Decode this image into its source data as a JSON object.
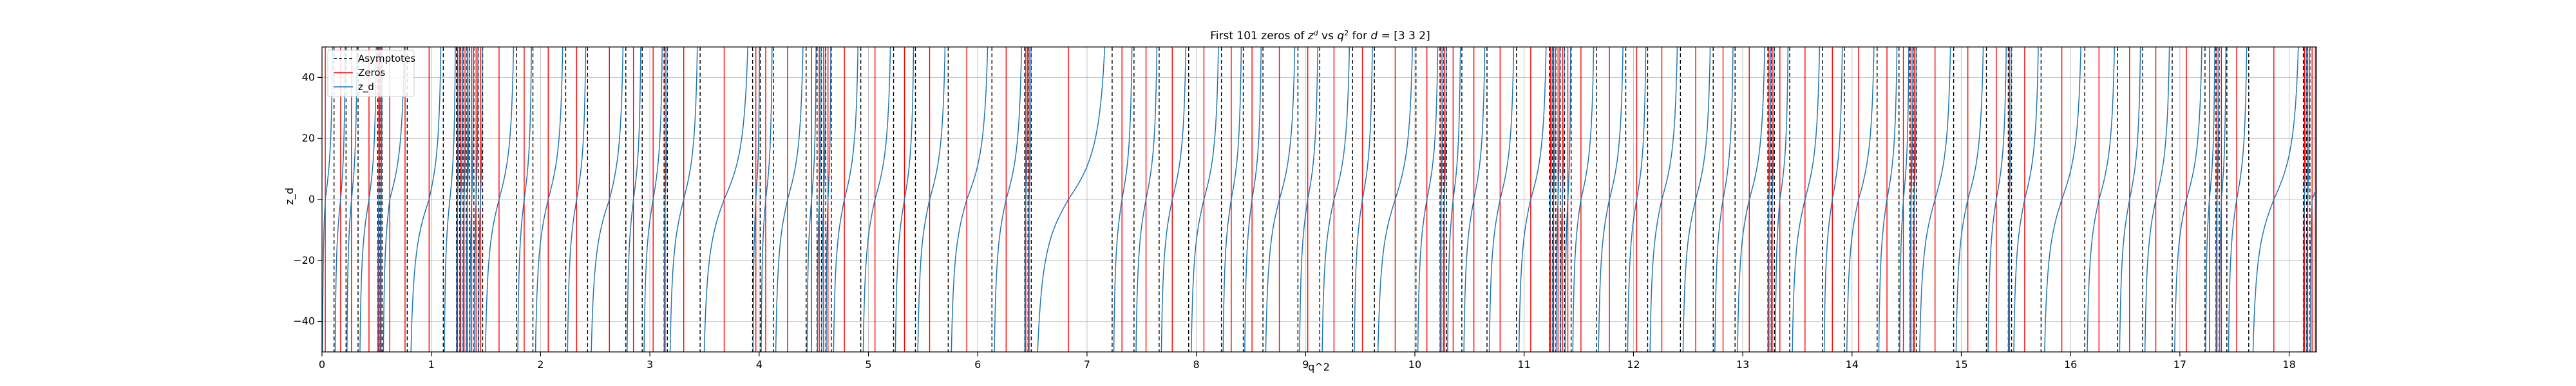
{
  "chart_data": {
    "type": "line",
    "title": "First 101 zeros of z^d vs q^2 for d = [3 3 2]",
    "title_parts": {
      "prefix": "First 101 zeros of ",
      "z": "z",
      "z_sup": "d",
      "vs": " vs ",
      "q": "q",
      "q_sup": "2",
      "for": " for ",
      "d": "d",
      "suffix": " = [3 3 2]"
    },
    "xlabel": "q^2",
    "ylabel": "z_d",
    "xlim": [
      0,
      18.25
    ],
    "ylim": [
      -50,
      50
    ],
    "xticks": [
      0,
      1,
      2,
      3,
      4,
      5,
      6,
      7,
      8,
      9,
      10,
      11,
      12,
      13,
      14,
      15,
      16,
      17,
      18
    ],
    "yticks": [
      -40,
      -20,
      0,
      20,
      40
    ],
    "grid": true,
    "legend": {
      "placement": "top-left",
      "entries": [
        {
          "label": "Asymptotes",
          "style": "dashed",
          "color": "#000000"
        },
        {
          "label": "Zeros",
          "style": "solid",
          "color": "#ff0000"
        },
        {
          "label": "z_d",
          "style": "solid",
          "color": "#1f77b4"
        }
      ]
    },
    "series": [
      {
        "name": "Asymptotes",
        "kind": "vertical-dashed",
        "color": "#000000",
        "x": [
          0.11,
          0.22,
          0.33,
          0.51,
          0.53,
          0.55,
          0.78,
          1.11,
          1.23,
          1.26,
          1.29,
          1.32,
          1.35,
          1.39,
          1.43,
          1.47,
          1.78,
          1.93,
          2.23,
          2.43,
          2.78,
          2.93,
          3.13,
          3.16,
          3.46,
          3.94,
          4.01,
          4.13,
          4.43,
          4.53,
          4.57,
          4.61,
          4.66,
          4.93,
          5.23,
          5.43,
          5.73,
          6.13,
          6.43,
          6.46,
          6.49,
          7.23,
          7.43,
          7.66,
          7.93,
          8.23,
          8.43,
          8.61,
          8.93,
          9.13,
          9.43,
          9.63,
          10.01,
          10.23,
          10.26,
          10.29,
          10.43,
          10.66,
          10.93,
          11.23,
          11.26,
          11.29,
          11.33,
          11.37,
          11.43,
          11.66,
          11.93,
          12.13,
          12.43,
          12.73,
          12.93,
          13.23,
          13.26,
          13.29,
          13.43,
          13.73,
          13.93,
          14.23,
          14.43,
          14.53,
          14.56,
          14.59,
          14.93,
          15.23,
          15.43,
          15.46,
          15.73,
          16.13,
          16.43,
          16.66,
          16.93,
          17.23,
          17.33,
          17.36,
          17.43,
          17.63,
          18.13,
          18.16,
          18.19
        ]
      },
      {
        "name": "Zeros",
        "kind": "vertical-solid",
        "color": "#ff0000",
        "x": [
          0.03,
          0.17,
          0.27,
          0.43,
          0.52,
          0.54,
          0.62,
          0.76,
          0.98,
          1.24,
          1.27,
          1.3,
          1.33,
          1.37,
          1.41,
          1.45,
          1.62,
          1.85,
          2.07,
          2.33,
          2.63,
          2.85,
          3.03,
          3.14,
          3.31,
          3.68,
          3.97,
          4.06,
          4.26,
          4.48,
          4.55,
          4.59,
          4.63,
          4.78,
          5.06,
          5.33,
          5.56,
          5.9,
          6.26,
          6.44,
          6.47,
          6.83,
          7.32,
          7.54,
          7.78,
          8.07,
          8.32,
          8.51,
          8.76,
          9.02,
          9.26,
          9.52,
          9.82,
          10.11,
          10.24,
          10.27,
          10.35,
          10.54,
          10.78,
          11.06,
          11.24,
          11.27,
          11.31,
          11.35,
          11.4,
          11.52,
          11.78,
          12.03,
          12.26,
          12.57,
          12.82,
          13.06,
          13.24,
          13.27,
          13.34,
          13.57,
          13.82,
          14.06,
          14.32,
          14.47,
          14.54,
          14.57,
          14.76,
          15.06,
          15.32,
          15.44,
          15.58,
          15.92,
          16.26,
          16.54,
          16.78,
          17.06,
          17.27,
          17.34,
          17.38,
          17.52,
          17.86,
          18.14,
          18.17,
          18.21,
          18.24
        ]
      },
      {
        "name": "z_d",
        "kind": "tangent-branches",
        "color": "#1f77b4",
        "note": "curve rises from -50 to +50 between consecutive asymptotes, crossing 0 at each zero"
      }
    ]
  }
}
